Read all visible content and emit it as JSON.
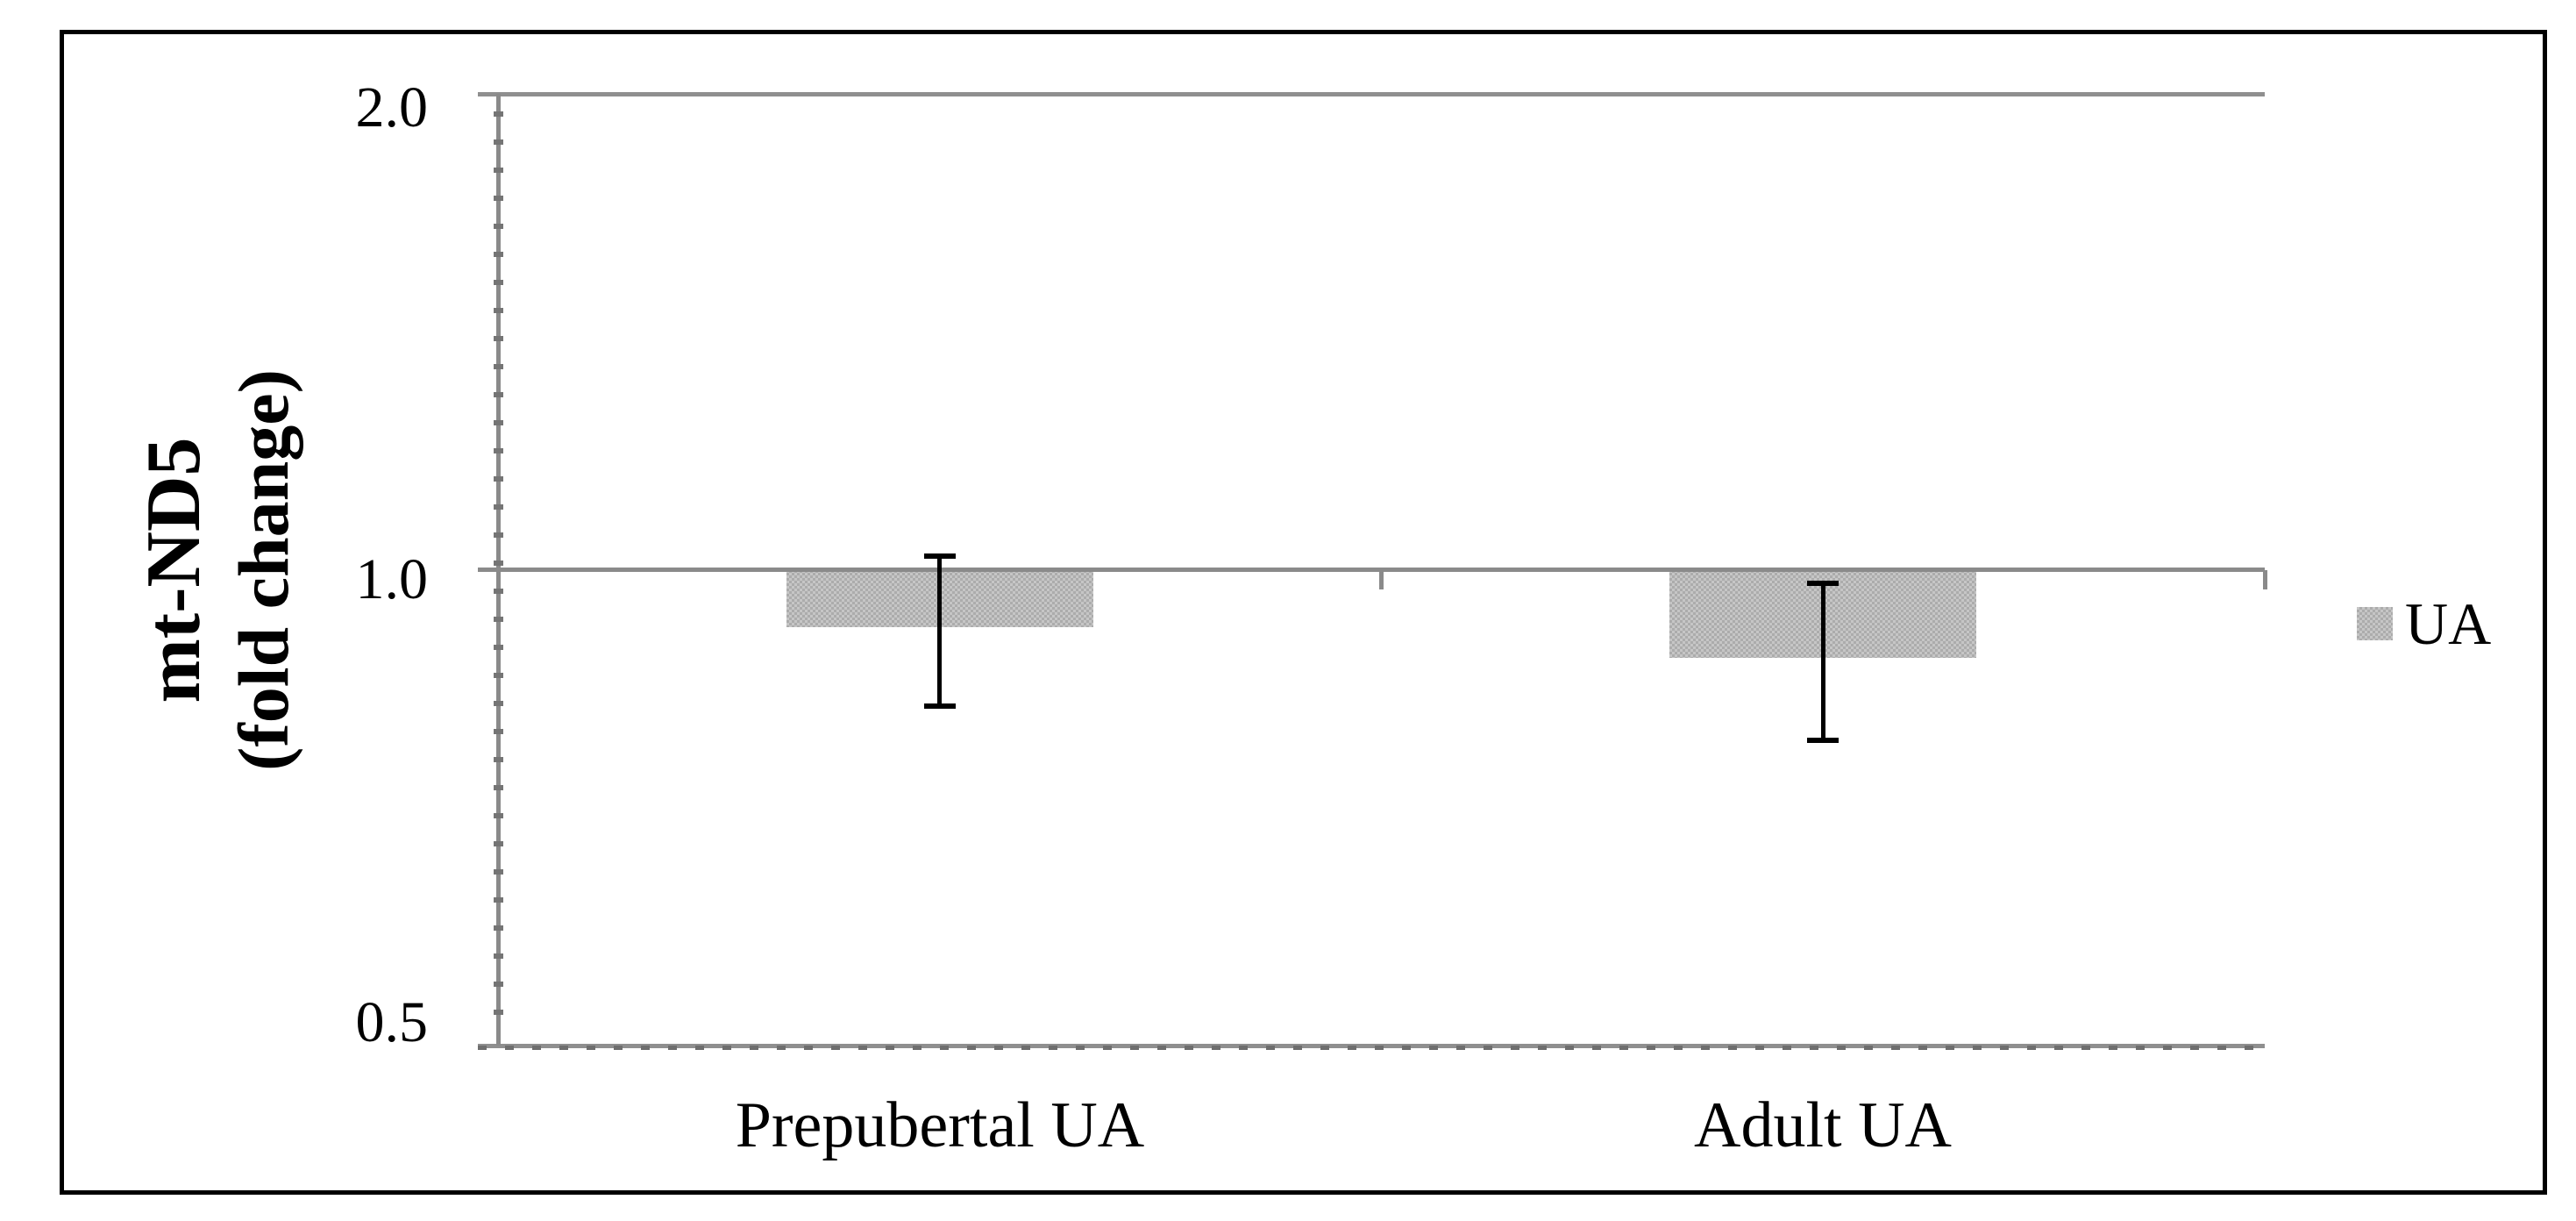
{
  "figure": {
    "background": "#ffffff",
    "border_color": "#000000"
  },
  "chart_data": {
    "type": "bar",
    "title": "",
    "categories": [
      "Prepubertal UA",
      "Adult UA"
    ],
    "series": [
      {
        "name": "UA",
        "values": [
          0.92,
          0.88
        ],
        "error_high": [
          1.02,
          0.98
        ],
        "error_low": [
          0.82,
          0.78
        ]
      }
    ],
    "ylabel_lines": [
      "mt-ND5",
      "(fold change)"
    ],
    "ytick_labels": [
      "2.0",
      "1.0",
      "0.5"
    ],
    "yticks": [
      2.0,
      1.0,
      0.5
    ],
    "ylim": [
      0.5,
      2.0
    ],
    "yscale": "log2",
    "baseline": 1.0,
    "grid": "horizontal",
    "legend": {
      "position": "right",
      "entries": [
        "UA"
      ]
    },
    "colors": {
      "bar_fill_light": "#c6c6c6",
      "bar_fill_dark": "#acacac",
      "gridline": "#8f8f8f",
      "axis": "#8a8a8a",
      "error_bar": "#000000",
      "text": "#000000"
    }
  }
}
